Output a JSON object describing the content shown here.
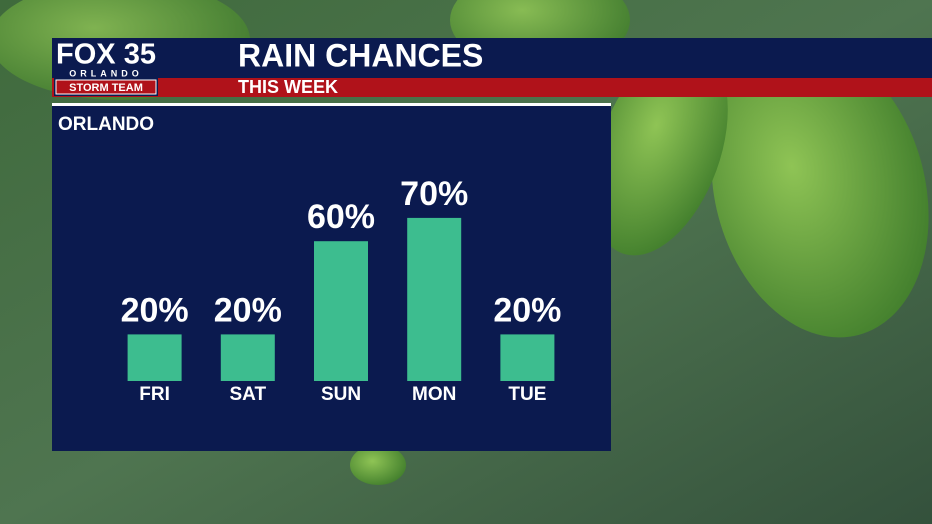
{
  "logo": {
    "name": "FOX 35",
    "city": "ORLANDO",
    "team": "STORM TEAM"
  },
  "chart_data": {
    "type": "bar",
    "title": "RAIN CHANCES",
    "subtitle": "THIS WEEK",
    "location": "ORLANDO",
    "categories": [
      "FRI",
      "SAT",
      "SUN",
      "MON",
      "TUE"
    ],
    "values": [
      20,
      20,
      60,
      70,
      20
    ],
    "value_labels": [
      "20%",
      "20%",
      "60%",
      "70%",
      "20%"
    ],
    "color": "#3dbd8f"
  }
}
